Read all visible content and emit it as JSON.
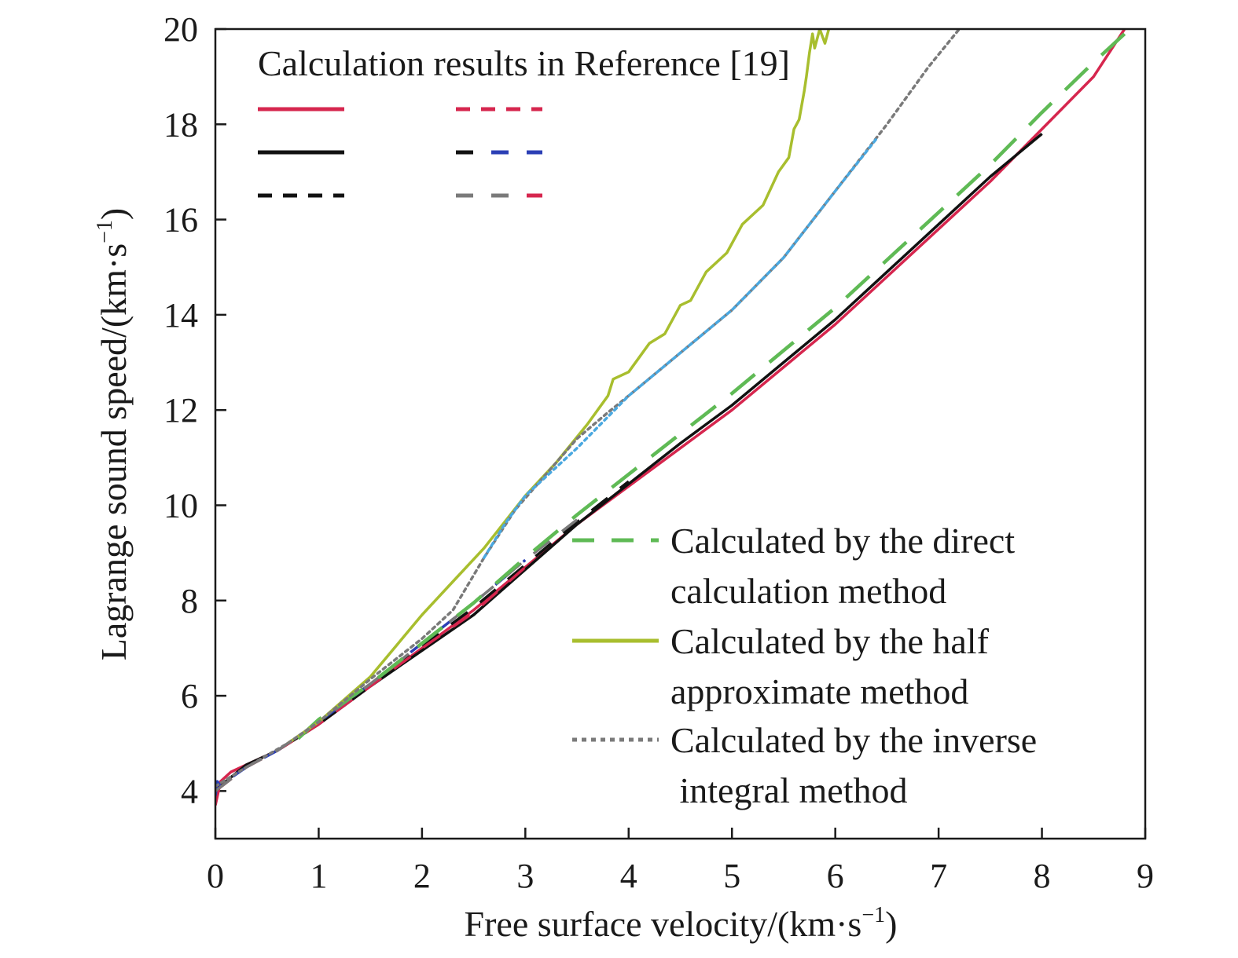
{
  "chart_data": {
    "type": "line",
    "xlabel": "Free surface velocity/(km·s",
    "xlabel_sup": "−1",
    "xlabel_end": ")",
    "ylabel": "Lagrange sound speed/(km·s",
    "ylabel_sup": "−1",
    "ylabel_end": ")",
    "xlim": [
      0,
      9
    ],
    "ylim": [
      3,
      20
    ],
    "xticks": [
      0,
      1,
      2,
      3,
      4,
      5,
      6,
      7,
      8,
      9
    ],
    "yticks": [
      4,
      6,
      8,
      10,
      12,
      14,
      16,
      18,
      20
    ],
    "grid": false,
    "reference_legend": {
      "title": "Calculation results in Reference [19]",
      "placement": "top-left"
    },
    "legend": {
      "placement": "bottom-right",
      "entries": [
        {
          "series": "direct",
          "lines": [
            "Calculated by the direct",
            "calculation method"
          ]
        },
        {
          "series": "half",
          "lines": [
            "Calculated by the half",
            "approximate method"
          ]
        },
        {
          "series": "inverse",
          "lines": [
            "Calculated by the inverse",
            " integral method"
          ]
        }
      ]
    },
    "colors": {
      "red": "#d6264e",
      "black": "#111111",
      "green": "#5fba55",
      "olive": "#a8be2e",
      "gray": "#7a7a7a",
      "blue": "#2b3fb5",
      "lightblue": "#4aa8e0"
    },
    "series": [
      {
        "id": "ref_red_solid",
        "color": "red",
        "dash": "solid",
        "x": [
          0,
          0.05,
          0.15,
          0.3,
          0.6,
          1.0,
          1.5,
          2.0,
          2.5,
          3.0,
          3.5,
          4.0,
          4.5,
          5.0,
          5.5,
          6.0,
          6.5,
          7.0,
          7.5,
          8.0,
          8.5,
          8.8
        ],
        "y": [
          3.7,
          4.2,
          4.4,
          4.55,
          4.85,
          5.4,
          6.2,
          7.0,
          7.8,
          8.7,
          9.6,
          10.4,
          11.2,
          12.0,
          12.9,
          13.8,
          14.8,
          15.8,
          16.8,
          17.9,
          19.0,
          20.0
        ]
      },
      {
        "id": "ref_black_solid",
        "color": "black",
        "dash": "solid",
        "x": [
          0,
          0.1,
          0.3,
          0.6,
          1.0,
          1.5,
          2.0,
          2.5,
          3.0,
          3.5,
          4.0,
          4.5,
          5.0,
          5.5,
          6.0,
          6.5,
          7.0,
          7.5,
          8.0
        ],
        "y": [
          4.0,
          4.2,
          4.55,
          4.85,
          5.4,
          6.2,
          6.95,
          7.7,
          8.65,
          9.6,
          10.45,
          11.3,
          12.1,
          13.0,
          13.9,
          14.9,
          15.9,
          16.9,
          17.8
        ]
      },
      {
        "id": "ref_black_dashed",
        "color": "black",
        "dash": "dashed",
        "x": [
          0,
          0.3,
          0.6,
          1.0,
          1.5,
          2.0,
          2.5,
          3.0,
          3.5,
          4.0
        ],
        "y": [
          4.0,
          4.5,
          4.85,
          5.45,
          6.25,
          7.05,
          7.85,
          8.75,
          9.65,
          10.5
        ]
      },
      {
        "id": "ref_red_dashed",
        "color": "red",
        "dash": "dashed",
        "x": [
          0,
          0.3,
          0.6,
          1.0,
          1.5,
          2.0,
          2.5,
          3.0
        ],
        "y": [
          4.0,
          4.5,
          4.85,
          5.4,
          6.2,
          7.0,
          7.75,
          8.7
        ]
      },
      {
        "id": "ref_blue_dashed",
        "color": "blue",
        "dash": "dashed",
        "x": [
          0,
          0.02,
          0.05,
          0.1,
          0.3,
          0.6,
          1.0,
          1.5,
          2.0,
          2.5,
          3.0
        ],
        "y": [
          3.9,
          4.2,
          4.1,
          4.2,
          4.5,
          4.85,
          5.45,
          6.25,
          7.1,
          7.95,
          8.85
        ]
      },
      {
        "id": "ref_gray_dashed",
        "color": "gray",
        "dash": "dashed",
        "x": [
          0,
          0.3,
          0.6,
          1.0,
          1.5,
          2.0,
          2.5,
          3.0,
          3.5
        ],
        "y": [
          4.0,
          4.5,
          4.85,
          5.45,
          6.25,
          7.1,
          7.95,
          8.85,
          9.7
        ]
      },
      {
        "id": "direct",
        "color": "green",
        "dash": "longdash",
        "x": [
          0.8,
          1.0,
          1.5,
          2.0,
          2.5,
          3.0,
          3.5,
          4.0,
          4.5,
          5.0,
          5.5,
          6.0,
          6.5,
          7.0,
          7.5,
          8.0,
          8.5,
          8.9
        ],
        "y": [
          5.1,
          5.5,
          6.25,
          7.1,
          7.95,
          8.9,
          9.8,
          10.65,
          11.5,
          12.35,
          13.25,
          14.15,
          15.15,
          16.15,
          17.15,
          18.25,
          19.3,
          20.1
        ]
      },
      {
        "id": "half",
        "color": "olive",
        "dash": "solid",
        "x": [
          0.7,
          1.0,
          1.5,
          2.0,
          2.3,
          2.6,
          3.0,
          3.3,
          3.6,
          3.8,
          3.85,
          4.0,
          4.2,
          4.35,
          4.5,
          4.6,
          4.75,
          4.95,
          5.1,
          5.3,
          5.45,
          5.55,
          5.6,
          5.65,
          5.7,
          5.72,
          5.75,
          5.78,
          5.8,
          5.85,
          5.9,
          5.95
        ],
        "y": [
          5.0,
          5.45,
          6.4,
          7.7,
          8.4,
          9.1,
          10.2,
          10.9,
          11.7,
          12.3,
          12.65,
          12.8,
          13.4,
          13.6,
          14.2,
          14.3,
          14.9,
          15.3,
          15.9,
          16.3,
          17.0,
          17.3,
          17.9,
          18.1,
          18.7,
          19.0,
          19.5,
          19.9,
          19.6,
          20.0,
          19.7,
          20.1
        ]
      },
      {
        "id": "inverse",
        "color": "gray",
        "dash": "dotted",
        "x": [
          0,
          0.3,
          0.7,
          1.0,
          1.5,
          2.0,
          2.3,
          2.6,
          2.9,
          3.1,
          3.5,
          3.8,
          4.0,
          4.5,
          5.0,
          5.5,
          6.0,
          6.5,
          6.9,
          7.2
        ],
        "y": [
          4.1,
          4.5,
          5.0,
          5.45,
          6.35,
          7.2,
          7.8,
          8.9,
          9.9,
          10.4,
          11.4,
          11.95,
          12.3,
          13.2,
          14.1,
          15.2,
          16.6,
          18.0,
          19.2,
          20.0
        ]
      }
    ],
    "series_highlights": [
      {
        "id": "inverse_blue_tint",
        "color": "lightblue",
        "dash": "dotted",
        "x": [
          2.6,
          2.8,
          3.0,
          3.5,
          4.0,
          4.5,
          5.0,
          5.5,
          6.0,
          6.4
        ],
        "y": [
          8.9,
          9.6,
          10.2,
          11.2,
          12.3,
          13.2,
          14.1,
          15.2,
          16.6,
          17.7
        ]
      }
    ]
  }
}
